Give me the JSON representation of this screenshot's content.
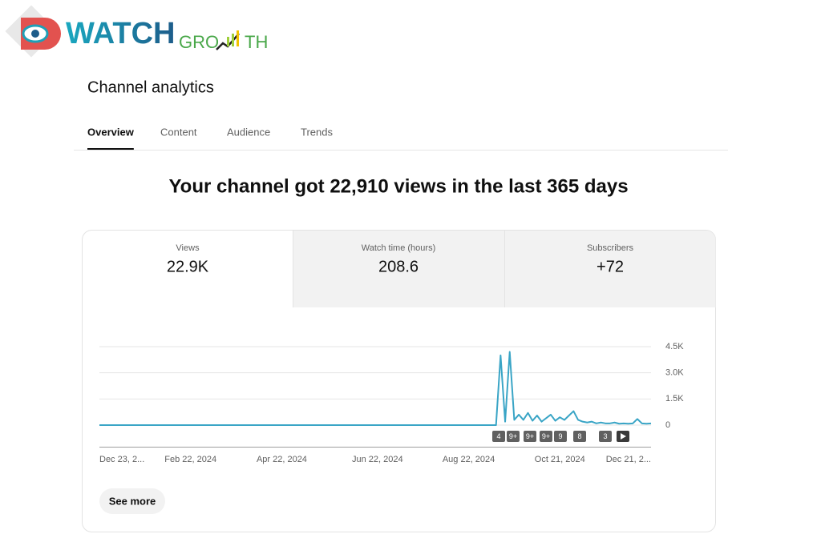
{
  "logo": {
    "word": "WATCH",
    "part1": "GRO",
    "part2": "TH"
  },
  "header": {
    "title": "Channel analytics",
    "tabs": [
      "Overview",
      "Content",
      "Audience",
      "Trends"
    ]
  },
  "headline": "Your channel got 22,910 views in the last 365 days",
  "metrics": [
    {
      "label": "Views",
      "value": "22.9K"
    },
    {
      "label": "Watch time (hours)",
      "value": "208.6"
    },
    {
      "label": "Subscribers",
      "value": "+72"
    }
  ],
  "chart_data": {
    "type": "line",
    "color": "#3aa5c6",
    "categories": [
      "Dec 23, 2...",
      null,
      null,
      null,
      null,
      null,
      null,
      null,
      null,
      null,
      null,
      null,
      null,
      null,
      null,
      null,
      null,
      null,
      null,
      null,
      "Feb 22, 2024",
      null,
      null,
      null,
      null,
      null,
      null,
      null,
      null,
      null,
      null,
      null,
      null,
      null,
      null,
      null,
      null,
      null,
      null,
      null,
      "Apr 22, 2024",
      null,
      null,
      null,
      null,
      null,
      null,
      null,
      null,
      null,
      null,
      null,
      null,
      null,
      null,
      null,
      null,
      null,
      null,
      null,
      null,
      "Jun 22, 2024",
      null,
      null,
      null,
      null,
      null,
      null,
      null,
      null,
      null,
      null,
      null,
      null,
      null,
      null,
      null,
      null,
      null,
      null,
      null,
      "Aug 22, 2024",
      null,
      null,
      null,
      null,
      null,
      null,
      null,
      null,
      null,
      null,
      null,
      null,
      null,
      null,
      null,
      null,
      null,
      null,
      null,
      "Oct 21, 2024",
      null,
      null,
      null,
      null,
      null,
      null,
      null,
      null,
      null,
      null,
      null,
      null,
      null,
      null,
      null,
      null,
      null,
      null,
      null,
      "Dec 21, 2..."
    ],
    "values": [
      0,
      0,
      0,
      0,
      0,
      0,
      0,
      0,
      0,
      0,
      0,
      0,
      0,
      0,
      0,
      0,
      0,
      0,
      0,
      0,
      0,
      0,
      0,
      0,
      0,
      0,
      0,
      0,
      0,
      0,
      0,
      0,
      0,
      0,
      0,
      0,
      0,
      0,
      0,
      0,
      0,
      0,
      0,
      0,
      0,
      0,
      0,
      0,
      0,
      0,
      0,
      0,
      0,
      0,
      0,
      0,
      0,
      0,
      0,
      0,
      0,
      0,
      0,
      0,
      0,
      0,
      0,
      0,
      0,
      0,
      0,
      0,
      0,
      0,
      0,
      0,
      0,
      0,
      0,
      0,
      0,
      0,
      0,
      0,
      0,
      0,
      0,
      0,
      4000,
      200,
      4200,
      300,
      600,
      300,
      700,
      250,
      550,
      200,
      400,
      600,
      250,
      450,
      300,
      550,
      800,
      300,
      200,
      150,
      200,
      100,
      150,
      100,
      100,
      150,
      80,
      100,
      80,
      100,
      350,
      100,
      80,
      100
    ],
    "ylim": [
      0,
      4500
    ],
    "yticks": [
      0,
      {
        "value": 1500,
        "label": "1.5K"
      },
      {
        "value": 3000,
        "label": "3.0K"
      },
      {
        "value": 4500,
        "label": "4.5K"
      }
    ],
    "grid": true,
    "markers": [
      "4",
      "9+",
      "9+",
      "9+",
      "9",
      "8",
      "3"
    ]
  },
  "button": "See more"
}
